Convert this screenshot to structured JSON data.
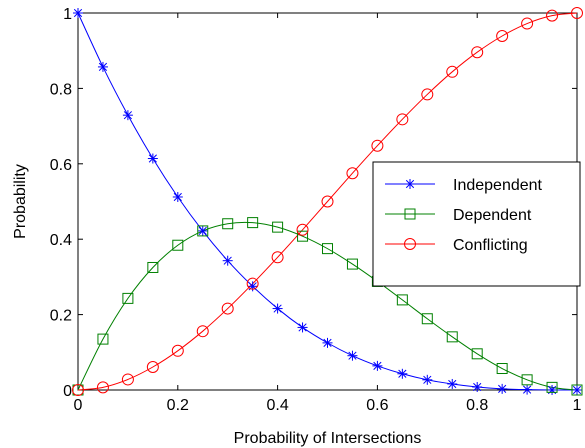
{
  "chart_data": {
    "type": "line",
    "xlabel": "Probability of Intersections",
    "ylabel": "Probability",
    "xlim": [
      0,
      1
    ],
    "ylim": [
      0,
      1
    ],
    "xticks": [
      0,
      0.2,
      0.4,
      0.6,
      0.8,
      1
    ],
    "yticks": [
      0,
      0.2,
      0.4,
      0.6,
      0.8,
      1
    ],
    "xtick_labels": [
      "0",
      "0.2",
      "0.4",
      "0.6",
      "0.8",
      "1"
    ],
    "ytick_labels": [
      "0",
      "0.2",
      "0.4",
      "0.6",
      "0.8",
      "1"
    ],
    "grid": false,
    "legend_position": "right",
    "x": [
      0,
      0.05,
      0.1,
      0.15,
      0.2,
      0.25,
      0.3,
      0.35,
      0.4,
      0.45,
      0.5,
      0.55,
      0.6,
      0.65,
      0.7,
      0.75,
      0.8,
      0.85,
      0.9,
      0.95,
      1.0
    ],
    "series": [
      {
        "name": "Independent",
        "color": "#0000ff",
        "marker": "asterisk",
        "values": [
          1.0,
          0.857,
          0.729,
          0.614,
          0.512,
          0.422,
          0.343,
          0.275,
          0.216,
          0.166,
          0.125,
          0.091,
          0.064,
          0.043,
          0.027,
          0.016,
          0.008,
          0.003,
          0.001,
          0.0001,
          0.0
        ]
      },
      {
        "name": "Dependent",
        "color": "#008000",
        "marker": "square",
        "values": [
          0.0,
          0.135,
          0.243,
          0.325,
          0.384,
          0.422,
          0.441,
          0.444,
          0.432,
          0.408,
          0.375,
          0.334,
          0.288,
          0.239,
          0.189,
          0.141,
          0.096,
          0.057,
          0.027,
          0.007,
          0.0
        ]
      },
      {
        "name": "Conflicting",
        "color": "#ff0000",
        "marker": "circle",
        "values": [
          0.0,
          0.007,
          0.028,
          0.061,
          0.104,
          0.156,
          0.216,
          0.282,
          0.352,
          0.425,
          0.5,
          0.575,
          0.648,
          0.718,
          0.784,
          0.844,
          0.896,
          0.939,
          0.972,
          0.993,
          1.0
        ]
      }
    ]
  }
}
